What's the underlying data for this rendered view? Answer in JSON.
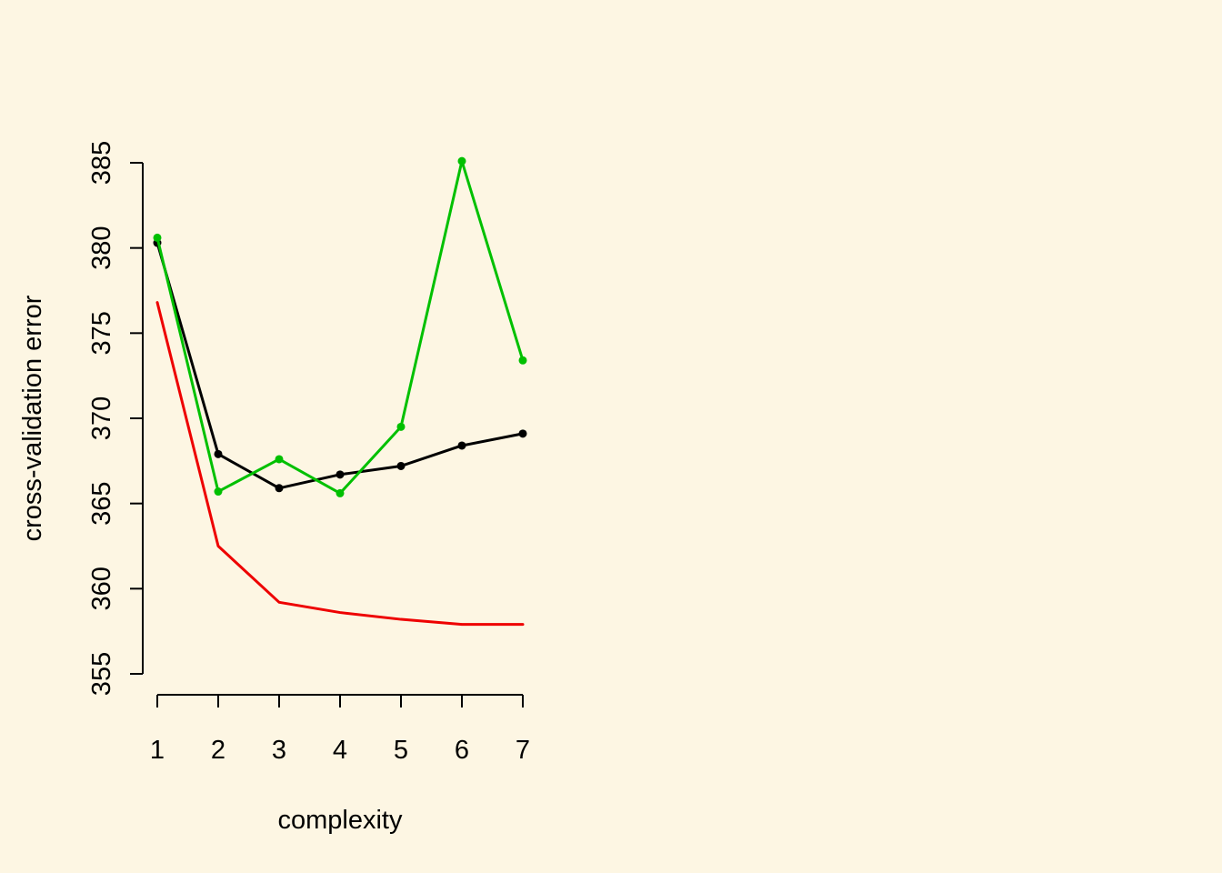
{
  "chart_data": {
    "type": "line",
    "title": "",
    "xlabel": "complexity",
    "ylabel": "cross-validation error",
    "x": [
      1,
      2,
      3,
      4,
      5,
      6,
      7
    ],
    "xlim": [
      1,
      7
    ],
    "ylim": [
      355,
      385
    ],
    "xticks": [
      "1",
      "2",
      "3",
      "4",
      "5",
      "6",
      "7"
    ],
    "yticks": [
      "355",
      "360",
      "365",
      "370",
      "375",
      "380",
      "385"
    ],
    "grid": false,
    "legend": "none",
    "series": [
      {
        "color": "#000000",
        "markers": true,
        "values": [
          380.3,
          367.9,
          365.9,
          366.7,
          367.2,
          368.4,
          369.1
        ]
      },
      {
        "color": "#ee0000",
        "markers": false,
        "values": [
          376.8,
          362.5,
          359.2,
          358.6,
          358.2,
          357.9,
          357.9
        ]
      },
      {
        "color": "#00c000",
        "markers": true,
        "values": [
          380.6,
          365.7,
          367.6,
          365.6,
          369.5,
          385.1,
          373.4
        ]
      }
    ]
  }
}
